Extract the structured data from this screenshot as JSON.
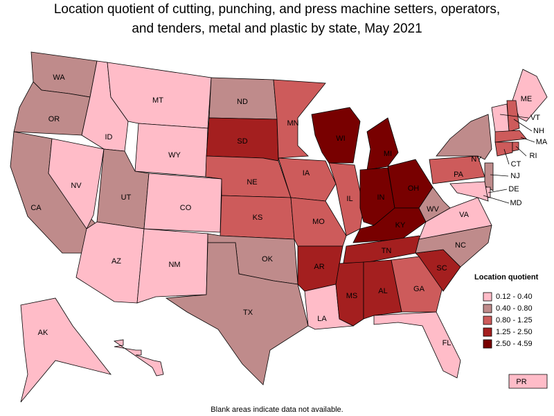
{
  "title_lines": [
    "Location quotient of cutting, punching, and press machine setters, operators,",
    "and tenders, metal and plastic by state, May 2021"
  ],
  "legend": {
    "title": "Location quotient",
    "items": [
      {
        "label": "0.12 - 0.40",
        "color": "#ffbcc8"
      },
      {
        "label": "0.40 - 0.80",
        "color": "#bf8b8b"
      },
      {
        "label": "0.80 - 1.25",
        "color": "#cd5b5b"
      },
      {
        "label": "1.25 - 2.50",
        "color": "#a41f1f"
      },
      {
        "label": "2.50 - 4.59",
        "color": "#780000"
      }
    ]
  },
  "states": [
    {
      "label": "WA",
      "color": "#bf8b8b"
    },
    {
      "label": "OR",
      "color": "#bf8b8b"
    },
    {
      "label": "CA",
      "color": "#bf8b8b"
    },
    {
      "label": "NV",
      "color": "#ffbcc8"
    },
    {
      "label": "ID",
      "color": "#ffbcc8"
    },
    {
      "label": "MT",
      "color": "#ffbcc8"
    },
    {
      "label": "WY",
      "color": "#ffbcc8"
    },
    {
      "label": "UT",
      "color": "#bf8b8b"
    },
    {
      "label": "AZ",
      "color": "#ffbcc8"
    },
    {
      "label": "CO",
      "color": "#ffbcc8"
    },
    {
      "label": "NM",
      "color": "#ffbcc8"
    },
    {
      "label": "ND",
      "color": "#bf8b8b"
    },
    {
      "label": "SD",
      "color": "#a41f1f"
    },
    {
      "label": "NE",
      "color": "#cd5b5b"
    },
    {
      "label": "KS",
      "color": "#cd5b5b"
    },
    {
      "label": "OK",
      "color": "#bf8b8b"
    },
    {
      "label": "TX",
      "color": "#bf8b8b"
    },
    {
      "label": "MN",
      "color": "#cd5b5b"
    },
    {
      "label": "IA",
      "color": "#cd5b5b"
    },
    {
      "label": "MO",
      "color": "#cd5b5b"
    },
    {
      "label": "AR",
      "color": "#a41f1f"
    },
    {
      "label": "LA",
      "color": "#ffbcc8"
    },
    {
      "label": "WI",
      "color": "#780000"
    },
    {
      "label": "IL",
      "color": "#cd5b5b"
    },
    {
      "label": "MI",
      "color": "#780000"
    },
    {
      "label": "IN",
      "color": "#780000"
    },
    {
      "label": "OH",
      "color": "#780000"
    },
    {
      "label": "KY",
      "color": "#780000"
    },
    {
      "label": "TN",
      "color": "#a41f1f"
    },
    {
      "label": "MS",
      "color": "#a41f1f"
    },
    {
      "label": "AL",
      "color": "#a41f1f"
    },
    {
      "label": "GA",
      "color": "#cd5b5b"
    },
    {
      "label": "FL",
      "color": "#ffbcc8"
    },
    {
      "label": "SC",
      "color": "#a41f1f"
    },
    {
      "label": "NC",
      "color": "#bf8b8b"
    },
    {
      "label": "VA",
      "color": "#ffbcc8"
    },
    {
      "label": "WV",
      "color": "#bf8b8b"
    },
    {
      "label": "PA",
      "color": "#cd5b5b"
    },
    {
      "label": "NY",
      "color": "#bf8b8b"
    },
    {
      "label": "ME",
      "color": "#ffbcc8"
    },
    {
      "label": "NH",
      "color": "#cd5b5b"
    },
    {
      "label": "VT",
      "color": "#ffbcc8"
    },
    {
      "label": "MA",
      "color": "#cd5b5b"
    },
    {
      "label": "CT",
      "color": "#cd5b5b"
    },
    {
      "label": "RI",
      "color": "#cd5b5b"
    },
    {
      "label": "NJ",
      "color": "#bf8b8b"
    },
    {
      "label": "DE",
      "color": "#ffbcc8"
    },
    {
      "label": "MD",
      "color": "#ffbcc8"
    },
    {
      "label": "AK",
      "color": "#ffbcc8"
    },
    {
      "label": null,
      "color": "#ffbcc8"
    },
    {
      "label": "PR",
      "color": "#ffbcc8"
    }
  ],
  "footnote": "Blank areas indicate data not available."
}
